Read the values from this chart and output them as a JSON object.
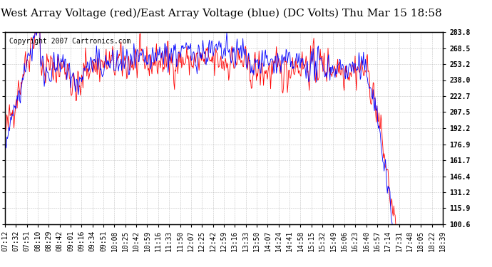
{
  "title": "West Array Voltage (red)/East Array Voltage (blue) (DC Volts) Thu Mar 15 18:58",
  "copyright": "Copyright 2007 Cartronics.com",
  "ylabel_right_values": [
    283.8,
    268.5,
    253.2,
    238.0,
    222.7,
    207.5,
    192.2,
    176.9,
    161.7,
    146.4,
    131.2,
    115.9,
    100.6
  ],
  "ymin": 100.6,
  "ymax": 283.8,
  "x_tick_labels": [
    "07:12",
    "07:32",
    "07:51",
    "08:10",
    "08:29",
    "08:42",
    "09:01",
    "09:16",
    "09:34",
    "09:51",
    "10:08",
    "10:25",
    "10:42",
    "10:59",
    "11:16",
    "11:33",
    "11:50",
    "12:07",
    "12:25",
    "12:42",
    "12:59",
    "13:16",
    "13:33",
    "13:50",
    "14:07",
    "14:24",
    "14:41",
    "14:58",
    "15:15",
    "15:32",
    "15:49",
    "16:06",
    "16:23",
    "16:40",
    "16:57",
    "17:14",
    "17:31",
    "17:48",
    "18:05",
    "18:22",
    "18:39"
  ],
  "background_color": "#ffffff",
  "plot_bg_color": "#ffffff",
  "grid_color": "#aaaaaa",
  "red_color": "#ff0000",
  "blue_color": "#0000ff",
  "title_fontsize": 11,
  "tick_fontsize": 7,
  "copyright_fontsize": 7
}
